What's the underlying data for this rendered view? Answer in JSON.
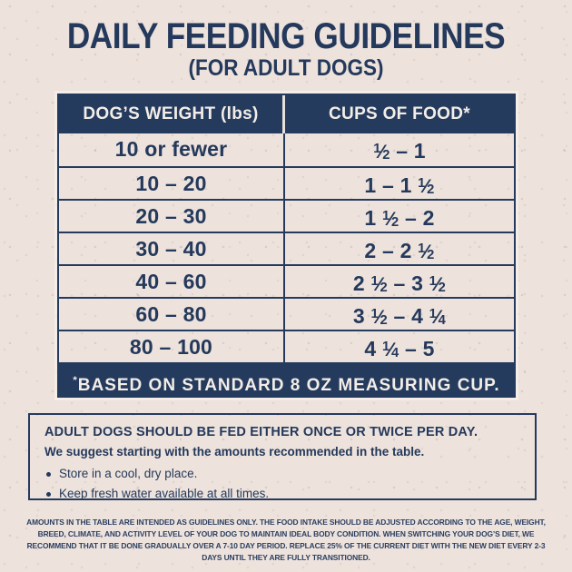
{
  "page": {
    "title": "DAILY FEEDING GUIDELINES",
    "subtitle": "(FOR ADULT DOGS)"
  },
  "table": {
    "headers": [
      "DOG’S WEIGHT (lbs)",
      "CUPS OF FOOD*"
    ],
    "rows": [
      {
        "weight": "10 or fewer",
        "cups": "1/2 – 1"
      },
      {
        "weight": "10 – 20",
        "cups": "1 – 1 1/2"
      },
      {
        "weight": "20 – 30",
        "cups": "1 1/2 – 2"
      },
      {
        "weight": "30 – 40",
        "cups": "2 – 2 1/2"
      },
      {
        "weight": "40 – 60",
        "cups": "2 1/2 – 3 1/2"
      },
      {
        "weight": "60 – 80",
        "cups": "3 1/2 – 4 1/4"
      },
      {
        "weight": "80 – 100",
        "cups": "4 1/4 – 5"
      }
    ],
    "footnote": "*BASED ON STANDARD 8 OZ MEASURING CUP."
  },
  "info_box": {
    "heading": "ADULT DOGS SHOULD BE FED EITHER ONCE OR TWICE PER DAY.",
    "subheading": "We suggest starting with the amounts recommended in the table.",
    "bullets": [
      "Store in a cool, dry place.",
      "Keep fresh water available at all times."
    ]
  },
  "fine_print": "AMOUNTS IN THE TABLE ARE INTENDED AS GUIDELINES ONLY. THE FOOD INTAKE SHOULD BE ADJUSTED ACCORDING TO THE AGE, WEIGHT, BREED, CLIMATE, AND ACTIVITY LEVEL OF YOUR DOG TO MAINTAIN IDEAL BODY CONDITION. WHEN SWITCHING YOUR DOG’S DIET, WE RECOMMEND THAT IT BE DONE GRADUALLY OVER A 7-10 DAY PERIOD. REPLACE 25% OF THE CURRENT DIET WITH THE NEW DIET EVERY 2-3 DAYS UNTIL THEY ARE FULLY TRANSITIONED.",
  "colors": {
    "navy": "#253B5E",
    "background": "#EDE2DC",
    "text_on_navy": "#F3EDE7"
  }
}
